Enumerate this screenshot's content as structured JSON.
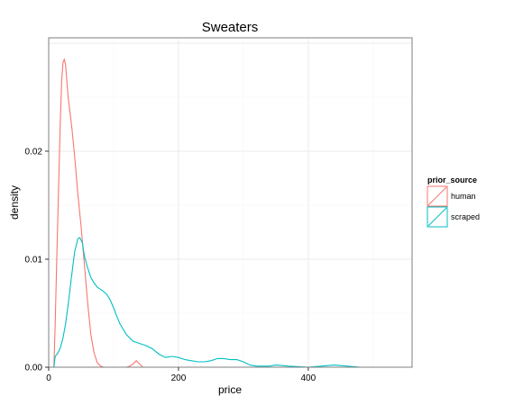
{
  "chart_data": {
    "type": "line",
    "subtype": "density",
    "title": "Sweaters",
    "xlabel": "price",
    "ylabel": "density",
    "xlim": [
      0,
      560
    ],
    "ylim": [
      0,
      0.0305
    ],
    "x_ticks": [
      0,
      200,
      400
    ],
    "x_tick_labels": [
      "0",
      "200",
      "400"
    ],
    "y_ticks": [
      0.0,
      0.01,
      0.02
    ],
    "y_tick_labels": [
      "0.00",
      "0.01",
      "0.02"
    ],
    "grid": true,
    "legend": {
      "title": "prior_source",
      "position": "right"
    },
    "series": [
      {
        "name": "human",
        "color": "#F8766D",
        "x": [
          8,
          10,
          12,
          15,
          18,
          20,
          22,
          24,
          26,
          28,
          30,
          33,
          36,
          40,
          45,
          50,
          55,
          60,
          65,
          70,
          75,
          80,
          85,
          90,
          100,
          110,
          120,
          125,
          130,
          135,
          140,
          145,
          150,
          160,
          200,
          300,
          400,
          500,
          550
        ],
        "y": [
          0.0,
          0.004,
          0.009,
          0.016,
          0.023,
          0.0265,
          0.0282,
          0.0285,
          0.028,
          0.0265,
          0.025,
          0.0235,
          0.022,
          0.0195,
          0.016,
          0.013,
          0.0095,
          0.006,
          0.003,
          0.0013,
          0.0004,
          0.0001,
          0.0,
          0.0,
          0.0,
          0.0,
          0.0,
          0.0001,
          0.0003,
          0.0006,
          0.0003,
          0.0,
          0.0,
          0.0,
          0.0,
          0.0,
          0.0,
          0.0,
          0.0
        ]
      },
      {
        "name": "scraped",
        "color": "#00BFC4",
        "x": [
          8,
          10,
          14,
          18,
          22,
          26,
          30,
          35,
          40,
          45,
          48,
          52,
          55,
          60,
          65,
          70,
          75,
          80,
          85,
          90,
          95,
          100,
          105,
          110,
          120,
          130,
          140,
          150,
          160,
          170,
          180,
          190,
          200,
          210,
          220,
          230,
          240,
          250,
          260,
          270,
          280,
          290,
          300,
          310,
          320,
          340,
          350,
          370,
          400,
          420,
          440,
          460,
          480,
          500,
          530,
          550
        ],
        "y": [
          0.0,
          0.001,
          0.0013,
          0.0018,
          0.0027,
          0.004,
          0.0058,
          0.0083,
          0.0107,
          0.0119,
          0.012,
          0.0115,
          0.0103,
          0.0092,
          0.0083,
          0.0078,
          0.0074,
          0.0072,
          0.007,
          0.0067,
          0.0062,
          0.0055,
          0.0047,
          0.004,
          0.003,
          0.0024,
          0.0022,
          0.002,
          0.0017,
          0.0012,
          0.0009,
          0.001,
          0.0009,
          0.0007,
          0.0006,
          0.0005,
          0.0005,
          0.0006,
          0.0008,
          0.0008,
          0.0007,
          0.0007,
          0.0005,
          0.0002,
          0.0001,
          0.0001,
          0.0002,
          0.0001,
          0.0,
          0.0001,
          0.0002,
          0.0001,
          0.0,
          0.0,
          0.0,
          0.0
        ]
      }
    ]
  }
}
